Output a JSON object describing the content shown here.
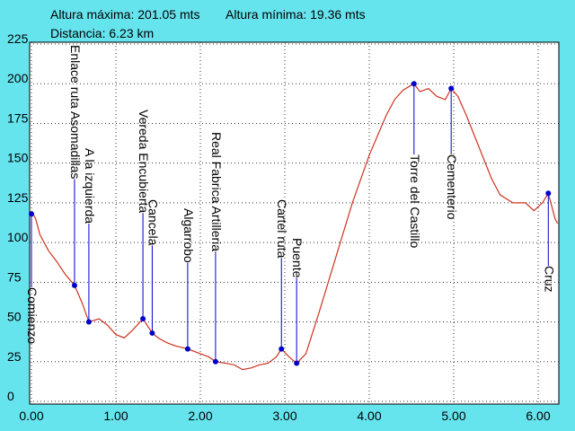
{
  "chart_data": {
    "type": "line",
    "header": [
      "Altura máxima: 201.05 mts",
      "Altura mínima: 19.36 mts",
      "Distancia: 6.23 km"
    ],
    "x": [
      0,
      0.05,
      0.1,
      0.2,
      0.3,
      0.4,
      0.51,
      0.6,
      0.68,
      0.8,
      0.9,
      1.0,
      1.1,
      1.2,
      1.32,
      1.43,
      1.5,
      1.6,
      1.7,
      1.85,
      2.0,
      2.1,
      2.18,
      2.3,
      2.4,
      2.5,
      2.6,
      2.7,
      2.8,
      2.9,
      2.96,
      3.05,
      3.14,
      3.25,
      3.4,
      3.6,
      3.8,
      4.0,
      4.2,
      4.3,
      4.4,
      4.53,
      4.6,
      4.7,
      4.8,
      4.9,
      4.97,
      5.05,
      5.15,
      5.3,
      5.45,
      5.55,
      5.7,
      5.85,
      5.95,
      6.05,
      6.12,
      6.2,
      6.23
    ],
    "values": [
      120,
      115,
      105,
      95,
      88,
      80,
      73,
      62,
      50,
      52,
      48,
      42,
      40,
      45,
      52,
      43,
      40,
      37,
      35,
      33,
      30,
      28,
      25,
      24,
      23,
      20,
      21,
      23,
      24,
      28,
      33,
      28,
      24,
      30,
      55,
      90,
      125,
      155,
      180,
      190,
      196,
      200,
      195,
      197,
      192,
      190,
      197,
      192,
      180,
      160,
      140,
      130,
      125,
      125,
      120,
      125,
      131,
      115,
      112
    ],
    "color": "#cc3322",
    "points": {
      "color": "#0000cc",
      "labels": [
        "Comienzo",
        "Enlace ruta Asomadillas",
        "A la izquierda",
        "Vereda Encubierta",
        "Cancela",
        "Algarrobo",
        "Real Fabrica Artilleria",
        "Cartel ruta",
        "Puente",
        "Torre del Castillo",
        "Cementerio",
        "Cruz"
      ],
      "x": [
        0,
        0.51,
        0.68,
        1.32,
        1.43,
        1.85,
        2.18,
        2.96,
        3.14,
        4.53,
        4.97,
        6.12
      ],
      "values": [
        118,
        73,
        50,
        52,
        43,
        33,
        25,
        33,
        24,
        200,
        197,
        131
      ]
    },
    "xlim": [
      0,
      6.25
    ],
    "ylim": [
      0,
      225
    ],
    "xticks": [
      {
        "value": 0,
        "label": "0.00"
      },
      {
        "value": 1,
        "label": "1.00"
      },
      {
        "value": 2,
        "label": "2.00"
      },
      {
        "value": 3,
        "label": "3.00"
      },
      {
        "value": 4,
        "label": "4.00"
      },
      {
        "value": 5,
        "label": "5.00"
      },
      {
        "value": 6,
        "label": "6.00"
      }
    ],
    "yticks": [
      0,
      25,
      50,
      75,
      100,
      125,
      150,
      175,
      200,
      225
    ],
    "grid": true
  }
}
